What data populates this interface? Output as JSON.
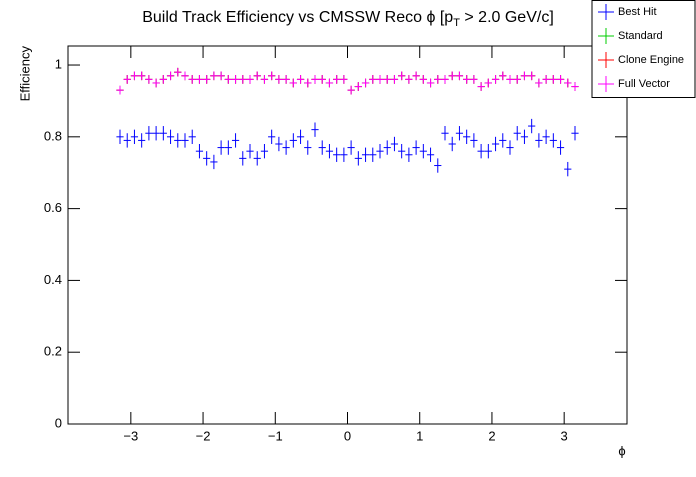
{
  "chart_data": {
    "type": "errorbar",
    "title": "Build Track Efficiency vs CMSSW Reco ϕ [p",
    "title_sub": "T",
    "title_end": " > 2.0 GeV/c]",
    "ylabel": "Efficiency",
    "xlabel": "ϕ",
    "x": [
      -3.15,
      -3.05,
      -2.95,
      -2.85,
      -2.75,
      -2.65,
      -2.55,
      -2.45,
      -2.35,
      -2.25,
      -2.15,
      -2.05,
      -1.95,
      -1.85,
      -1.75,
      -1.65,
      -1.55,
      -1.45,
      -1.35,
      -1.25,
      -1.15,
      -1.05,
      -0.95,
      -0.85,
      -0.75,
      -0.65,
      -0.55,
      -0.45,
      -0.35,
      -0.25,
      -0.15,
      -0.05,
      0.05,
      0.15,
      0.25,
      0.35,
      0.45,
      0.55,
      0.65,
      0.75,
      0.85,
      0.95,
      1.05,
      1.15,
      1.25,
      1.35,
      1.45,
      1.55,
      1.65,
      1.75,
      1.85,
      1.95,
      2.05,
      2.15,
      2.25,
      2.35,
      2.45,
      2.55,
      2.65,
      2.75,
      2.85,
      2.95,
      3.05,
      3.15
    ],
    "series": [
      {
        "name": "Best Hit",
        "color": "#0000ff",
        "error": 0.02,
        "values": [
          0.8,
          0.79,
          0.8,
          0.79,
          0.81,
          0.81,
          0.81,
          0.8,
          0.79,
          0.79,
          0.8,
          0.76,
          0.74,
          0.73,
          0.77,
          0.77,
          0.79,
          0.74,
          0.76,
          0.74,
          0.76,
          0.8,
          0.78,
          0.77,
          0.79,
          0.8,
          0.77,
          0.82,
          0.77,
          0.76,
          0.75,
          0.75,
          0.77,
          0.74,
          0.75,
          0.75,
          0.76,
          0.77,
          0.78,
          0.76,
          0.75,
          0.77,
          0.76,
          0.75,
          0.72,
          0.81,
          0.78,
          0.81,
          0.8,
          0.79,
          0.76,
          0.76,
          0.78,
          0.79,
          0.77,
          0.81,
          0.8,
          0.83,
          0.79,
          0.8,
          0.79,
          0.77,
          0.71,
          0.81
        ]
      },
      {
        "name": "Standard",
        "color": "#00cc00",
        "error": 0.012,
        "values": [
          0.93,
          0.96,
          0.97,
          0.97,
          0.96,
          0.95,
          0.96,
          0.97,
          0.98,
          0.97,
          0.96,
          0.96,
          0.96,
          0.97,
          0.97,
          0.96,
          0.96,
          0.96,
          0.96,
          0.97,
          0.96,
          0.97,
          0.96,
          0.96,
          0.95,
          0.96,
          0.95,
          0.96,
          0.96,
          0.95,
          0.96,
          0.96,
          0.93,
          0.94,
          0.95,
          0.96,
          0.96,
          0.96,
          0.96,
          0.97,
          0.96,
          0.97,
          0.96,
          0.95,
          0.96,
          0.96,
          0.97,
          0.97,
          0.96,
          0.96,
          0.94,
          0.95,
          0.96,
          0.97,
          0.96,
          0.96,
          0.97,
          0.97,
          0.95,
          0.96,
          0.96,
          0.96,
          0.95,
          0.94
        ]
      },
      {
        "name": "Clone Engine",
        "color": "#ff0000",
        "error": 0.012,
        "values": [
          0.93,
          0.96,
          0.97,
          0.97,
          0.96,
          0.95,
          0.96,
          0.97,
          0.98,
          0.97,
          0.96,
          0.96,
          0.96,
          0.97,
          0.97,
          0.96,
          0.96,
          0.96,
          0.96,
          0.97,
          0.96,
          0.97,
          0.96,
          0.96,
          0.95,
          0.96,
          0.95,
          0.96,
          0.96,
          0.95,
          0.96,
          0.96,
          0.93,
          0.94,
          0.95,
          0.96,
          0.96,
          0.96,
          0.96,
          0.97,
          0.96,
          0.97,
          0.96,
          0.95,
          0.96,
          0.96,
          0.97,
          0.97,
          0.96,
          0.96,
          0.94,
          0.95,
          0.96,
          0.97,
          0.96,
          0.96,
          0.97,
          0.97,
          0.95,
          0.96,
          0.96,
          0.96,
          0.95,
          0.94
        ]
      },
      {
        "name": "Full Vector",
        "color": "#ff00ff",
        "error": 0.012,
        "values": [
          0.93,
          0.96,
          0.97,
          0.97,
          0.96,
          0.95,
          0.96,
          0.97,
          0.98,
          0.97,
          0.96,
          0.96,
          0.96,
          0.97,
          0.97,
          0.96,
          0.96,
          0.96,
          0.96,
          0.97,
          0.96,
          0.97,
          0.96,
          0.96,
          0.95,
          0.96,
          0.95,
          0.96,
          0.96,
          0.95,
          0.96,
          0.96,
          0.93,
          0.94,
          0.95,
          0.96,
          0.96,
          0.96,
          0.96,
          0.97,
          0.96,
          0.97,
          0.96,
          0.95,
          0.96,
          0.96,
          0.97,
          0.97,
          0.96,
          0.96,
          0.94,
          0.95,
          0.96,
          0.97,
          0.96,
          0.96,
          0.97,
          0.97,
          0.95,
          0.96,
          0.96,
          0.96,
          0.95,
          0.94
        ]
      }
    ],
    "xlim": [
      -3.87,
      3.87
    ],
    "xticks": [
      {
        "value": -3,
        "label": "−3"
      },
      {
        "value": -2,
        "label": "−2"
      },
      {
        "value": -1,
        "label": "−1"
      },
      0,
      1,
      2,
      3
    ],
    "ylim": [
      0,
      1.053
    ],
    "yticks": [
      0,
      0.2,
      0.4,
      0.6,
      0.8,
      1
    ]
  }
}
